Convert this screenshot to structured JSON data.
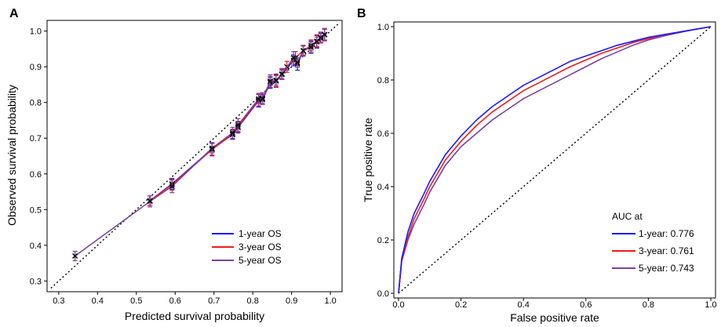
{
  "chart_data": [
    {
      "type": "line",
      "panel_label": "A",
      "xlabel": "Predicted survival probability",
      "ylabel": "Observed survival probability",
      "xlim": [
        0.27,
        1.03
      ],
      "ylim": [
        0.27,
        1.03
      ],
      "xticks": [
        "0.3",
        "0.4",
        "0.5",
        "0.6",
        "0.7",
        "0.8",
        "0.9",
        "1.0"
      ],
      "yticks": [
        "0.3",
        "0.4",
        "0.5",
        "0.6",
        "0.7",
        "0.8",
        "0.9",
        "1.0"
      ],
      "reference_line": "dotted diagonal y = x",
      "legend_position": "bottom-right",
      "series": [
        {
          "name": "1-year OS",
          "color": "#1a1aff",
          "x": [
            0.535,
            0.592,
            0.695,
            0.748,
            0.762,
            0.815,
            0.825,
            0.845,
            0.86,
            0.875,
            0.905,
            0.915,
            0.93,
            0.95,
            0.965,
            0.975,
            0.985
          ],
          "y": [
            0.525,
            0.572,
            0.67,
            0.71,
            0.73,
            0.805,
            0.808,
            0.855,
            0.862,
            0.878,
            0.918,
            0.908,
            0.945,
            0.955,
            0.97,
            0.98,
            0.99
          ]
        },
        {
          "name": "3-year OS",
          "color": "#ee1c1c",
          "x": [
            0.535,
            0.592,
            0.695,
            0.748,
            0.762,
            0.815,
            0.825,
            0.845,
            0.86,
            0.875,
            0.888,
            0.91,
            0.93,
            0.95,
            0.965,
            0.975,
            0.985
          ],
          "y": [
            0.525,
            0.57,
            0.668,
            0.712,
            0.732,
            0.808,
            0.81,
            0.858,
            0.86,
            0.88,
            0.9,
            0.925,
            0.945,
            0.96,
            0.972,
            0.982,
            0.99
          ]
        },
        {
          "name": "5-year OS",
          "color": "#7a3fa0",
          "x": [
            0.342,
            0.535,
            0.592,
            0.695,
            0.748,
            0.762,
            0.815,
            0.825,
            0.845,
            0.86,
            0.875,
            0.905,
            0.915,
            0.93,
            0.95,
            0.965,
            0.975,
            0.985
          ],
          "y": [
            0.37,
            0.523,
            0.565,
            0.672,
            0.715,
            0.737,
            0.81,
            0.812,
            0.86,
            0.862,
            0.88,
            0.925,
            0.912,
            0.945,
            0.955,
            0.97,
            0.982,
            0.99
          ]
        }
      ]
    },
    {
      "type": "line",
      "panel_label": "B",
      "xlabel": "False positive rate",
      "ylabel": "True positive rate",
      "xlim": [
        0,
        1
      ],
      "ylim": [
        0,
        1
      ],
      "xticks": [
        "0.0",
        "0.2",
        "0.4",
        "0.6",
        "0.8",
        "1.0"
      ],
      "yticks": [
        "0.0",
        "0.2",
        "0.4",
        "0.6",
        "0.8",
        "1.0"
      ],
      "reference_line": "dotted diagonal y = x",
      "legend_title": "AUC at",
      "legend_position": "bottom-right",
      "series": [
        {
          "name": "1-year: 0.776",
          "color": "#1a1aff",
          "x": [
            0,
            0.01,
            0.03,
            0.05,
            0.08,
            0.1,
            0.15,
            0.2,
            0.25,
            0.3,
            0.35,
            0.4,
            0.45,
            0.5,
            0.55,
            0.6,
            0.65,
            0.7,
            0.75,
            0.8,
            0.85,
            0.9,
            0.95,
            1.0
          ],
          "y": [
            0,
            0.13,
            0.23,
            0.3,
            0.37,
            0.42,
            0.52,
            0.59,
            0.65,
            0.7,
            0.74,
            0.78,
            0.81,
            0.84,
            0.87,
            0.89,
            0.91,
            0.93,
            0.945,
            0.96,
            0.97,
            0.98,
            0.99,
            1.0
          ]
        },
        {
          "name": "3-year: 0.761",
          "color": "#ee1c1c",
          "x": [
            0,
            0.01,
            0.03,
            0.05,
            0.08,
            0.1,
            0.15,
            0.2,
            0.25,
            0.3,
            0.35,
            0.4,
            0.45,
            0.5,
            0.55,
            0.6,
            0.65,
            0.7,
            0.75,
            0.8,
            0.85,
            0.9,
            0.95,
            1.0
          ],
          "y": [
            0,
            0.12,
            0.21,
            0.28,
            0.35,
            0.4,
            0.5,
            0.57,
            0.63,
            0.68,
            0.72,
            0.76,
            0.79,
            0.82,
            0.85,
            0.875,
            0.9,
            0.92,
            0.94,
            0.955,
            0.97,
            0.98,
            0.99,
            1.0
          ]
        },
        {
          "name": "5-year: 0.743",
          "color": "#7a3fa0",
          "x": [
            0,
            0.01,
            0.03,
            0.05,
            0.08,
            0.1,
            0.15,
            0.2,
            0.25,
            0.3,
            0.35,
            0.4,
            0.45,
            0.5,
            0.55,
            0.6,
            0.65,
            0.7,
            0.75,
            0.8,
            0.85,
            0.9,
            0.95,
            1.0
          ],
          "y": [
            0,
            0.12,
            0.2,
            0.26,
            0.33,
            0.38,
            0.48,
            0.55,
            0.6,
            0.65,
            0.69,
            0.73,
            0.76,
            0.79,
            0.82,
            0.85,
            0.88,
            0.905,
            0.93,
            0.95,
            0.965,
            0.978,
            0.99,
            1.0
          ]
        }
      ]
    }
  ]
}
